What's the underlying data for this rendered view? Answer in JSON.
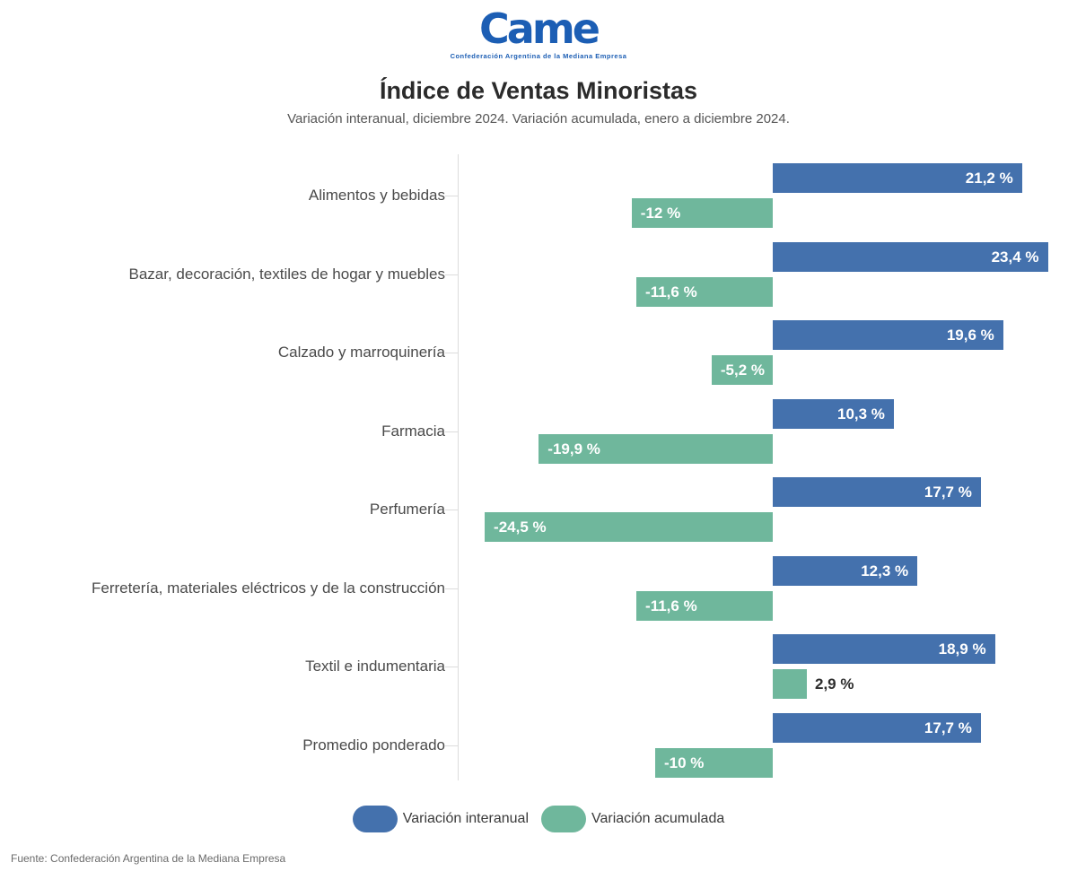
{
  "logo": {
    "text": "Came",
    "tagline": "Confederación Argentina de la Mediana Empresa",
    "color": "#1c5eb4"
  },
  "header": {
    "title": "Índice de Ventas Minoristas",
    "subtitle": "Variación interanual, diciembre 2024. Variación acumulada, enero a diciembre 2024."
  },
  "chart_data": {
    "type": "bar",
    "orientation": "horizontal",
    "title": "Índice de Ventas Minoristas",
    "subtitle": "Variación interanual, diciembre 2024. Variación acumulada, enero a diciembre 2024.",
    "xlabel": "",
    "ylabel": "",
    "xlim": [
      -27,
      26
    ],
    "grid": false,
    "legend_position": "bottom",
    "categories": [
      "Alimentos y bebidas",
      "Bazar, decoración, textiles de hogar y muebles",
      "Calzado y marroquinería",
      "Farmacia",
      "Perfumería",
      "Ferretería, materiales eléctricos y de la construcción",
      "Textil e indumentaria",
      "Promedio ponderado"
    ],
    "series": [
      {
        "name": "Variación interanual",
        "color": "#4471ad",
        "values": [
          21.2,
          23.4,
          19.6,
          10.3,
          17.7,
          12.3,
          18.9,
          17.7
        ],
        "labels": [
          "21,2 %",
          "23,4 %",
          "19,6 %",
          "10,3 %",
          "17,7 %",
          "12,3 %",
          "18,9 %",
          "17,7 %"
        ]
      },
      {
        "name": "Variación acumulada",
        "color": "#6fb79c",
        "values": [
          -12,
          -11.6,
          -5.2,
          -19.9,
          -24.5,
          -11.6,
          2.9,
          -10
        ],
        "labels": [
          "-12 %",
          "-11,6 %",
          "-5,2 %",
          "-19,9 %",
          "-24,5 %",
          "-11,6 %",
          "2,9 %",
          "-10 %"
        ]
      }
    ]
  },
  "legend": {
    "items": [
      {
        "label": "Variación interanual",
        "color": "#4471ad"
      },
      {
        "label": "Variación acumulada",
        "color": "#6fb79c"
      }
    ]
  },
  "footer": {
    "source": "Fuente: Confederación Argentina de la Mediana Empresa"
  }
}
